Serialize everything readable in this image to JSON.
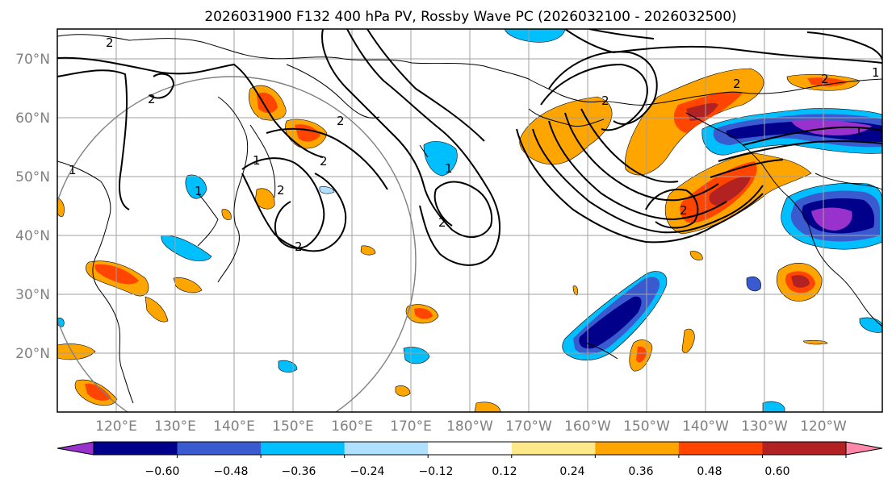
{
  "title": "2026031900 F132 400 hPa PV, Rossby Wave PC (2026032100 - 2026032500)",
  "map": {
    "lat_labels": [
      "70°N",
      "60°N",
      "50°N",
      "40°N",
      "30°N",
      "20°N"
    ],
    "lon_labels": [
      "120°E",
      "130°E",
      "140°E",
      "150°E",
      "160°E",
      "170°E",
      "180°W",
      "170°W",
      "160°W",
      "150°W",
      "140°W",
      "130°W",
      "120°W"
    ],
    "contour_labels": [
      "2",
      "2",
      "2",
      "2",
      "2",
      "2",
      "2",
      "1",
      "1",
      "1",
      "1",
      "2",
      "2",
      "2",
      "1",
      "1",
      "2"
    ],
    "reference_circle": "great-circle radius marker"
  },
  "colorbar": {
    "tick_labels": [
      "−0.60",
      "−0.48",
      "−0.36",
      "−0.24",
      "−0.12",
      "0.12",
      "0.24",
      "0.36",
      "0.48",
      "0.60"
    ],
    "colors": [
      "#9932cc",
      "#00008b",
      "#3a5bd0",
      "#00bfff",
      "#b0e0ff",
      "#ffffff",
      "#ffe88a",
      "#ffa500",
      "#ff4500",
      "#b22222",
      "#ff88aa"
    ]
  }
}
